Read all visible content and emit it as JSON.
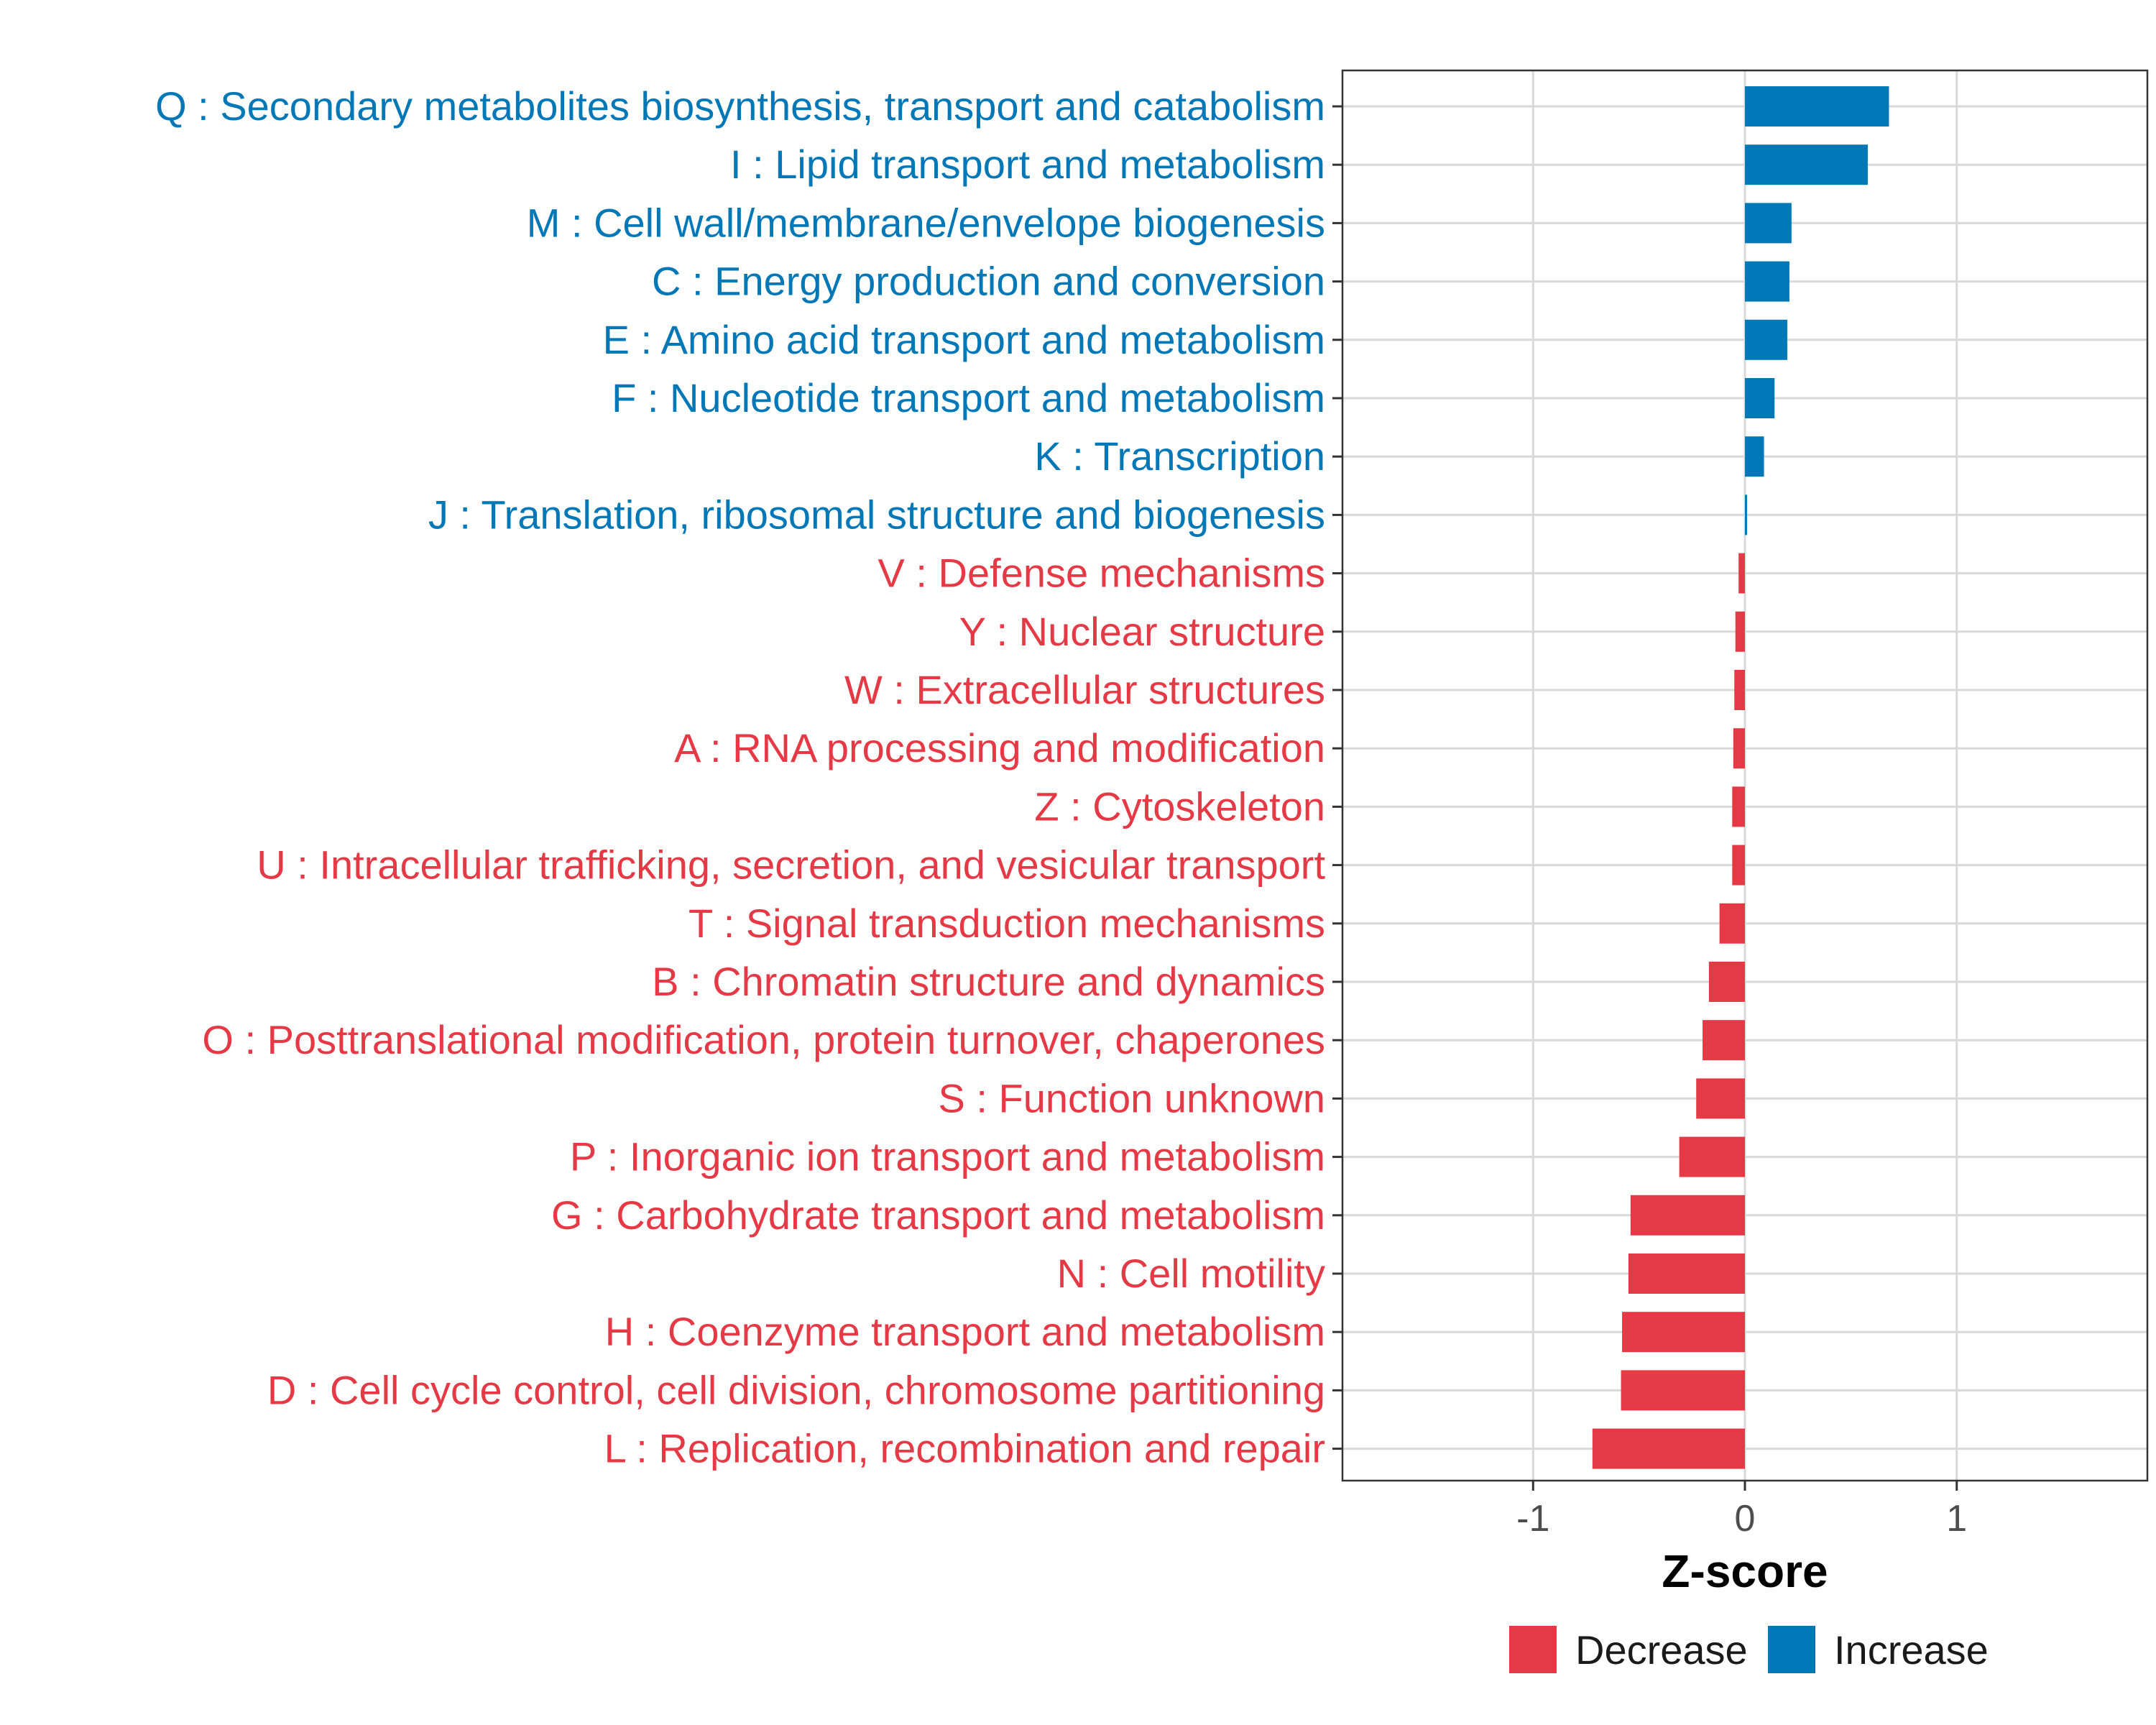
{
  "chart_data": {
    "type": "bar",
    "orientation": "horizontal",
    "xlabel": "Z-score",
    "ylabel": "",
    "xlim": [
      -1.9,
      1.9
    ],
    "xticks": [
      {
        "value": -1,
        "label": "-1"
      },
      {
        "value": 0,
        "label": "0"
      },
      {
        "value": 1,
        "label": "1"
      }
    ],
    "grid": true,
    "legend_position": "bottom",
    "colors": {
      "Decrease": "#e63946",
      "Increase": "#0077b6"
    },
    "legend": [
      {
        "name": "Decrease",
        "color": "#e63946"
      },
      {
        "name": "Increase",
        "color": "#0077b6"
      }
    ],
    "categories": [
      {
        "label": "Q : Secondary metabolites biosynthesis, transport and catabolism",
        "value": 0.68,
        "group": "Increase"
      },
      {
        "label": "I : Lipid transport and metabolism",
        "value": 0.58,
        "group": "Increase"
      },
      {
        "label": "M : Cell wall/membrane/envelope biogenesis",
        "value": 0.22,
        "group": "Increase"
      },
      {
        "label": "C : Energy production and conversion",
        "value": 0.21,
        "group": "Increase"
      },
      {
        "label": "E : Amino acid transport and metabolism",
        "value": 0.2,
        "group": "Increase"
      },
      {
        "label": "F : Nucleotide transport and metabolism",
        "value": 0.14,
        "group": "Increase"
      },
      {
        "label": "K : Transcription",
        "value": 0.09,
        "group": "Increase"
      },
      {
        "label": "J : Translation, ribosomal structure and biogenesis",
        "value": 0.01,
        "group": "Increase"
      },
      {
        "label": "V : Defense mechanisms",
        "value": -0.03,
        "group": "Decrease"
      },
      {
        "label": "Y : Nuclear structure",
        "value": -0.045,
        "group": "Decrease"
      },
      {
        "label": "W : Extracellular structures",
        "value": -0.05,
        "group": "Decrease"
      },
      {
        "label": "A : RNA processing and modification",
        "value": -0.055,
        "group": "Decrease"
      },
      {
        "label": "Z : Cytoskeleton",
        "value": -0.06,
        "group": "Decrease"
      },
      {
        "label": "U : Intracellular trafficking, secretion, and vesicular transport",
        "value": -0.06,
        "group": "Decrease"
      },
      {
        "label": "T : Signal transduction mechanisms",
        "value": -0.12,
        "group": "Decrease"
      },
      {
        "label": "B : Chromatin structure and dynamics",
        "value": -0.17,
        "group": "Decrease"
      },
      {
        "label": "O : Posttranslational modification, protein turnover, chaperones",
        "value": -0.2,
        "group": "Decrease"
      },
      {
        "label": "S : Function unknown",
        "value": -0.23,
        "group": "Decrease"
      },
      {
        "label": "P : Inorganic ion transport and metabolism",
        "value": -0.31,
        "group": "Decrease"
      },
      {
        "label": "G : Carbohydrate transport and metabolism",
        "value": -0.54,
        "group": "Decrease"
      },
      {
        "label": "N : Cell motility",
        "value": -0.55,
        "group": "Decrease"
      },
      {
        "label": "H : Coenzyme transport and metabolism",
        "value": -0.58,
        "group": "Decrease"
      },
      {
        "label": "D : Cell cycle control, cell division, chromosome partitioning",
        "value": -0.585,
        "group": "Decrease"
      },
      {
        "label": "L : Replication, recombination and repair",
        "value": -0.72,
        "group": "Decrease"
      }
    ]
  }
}
